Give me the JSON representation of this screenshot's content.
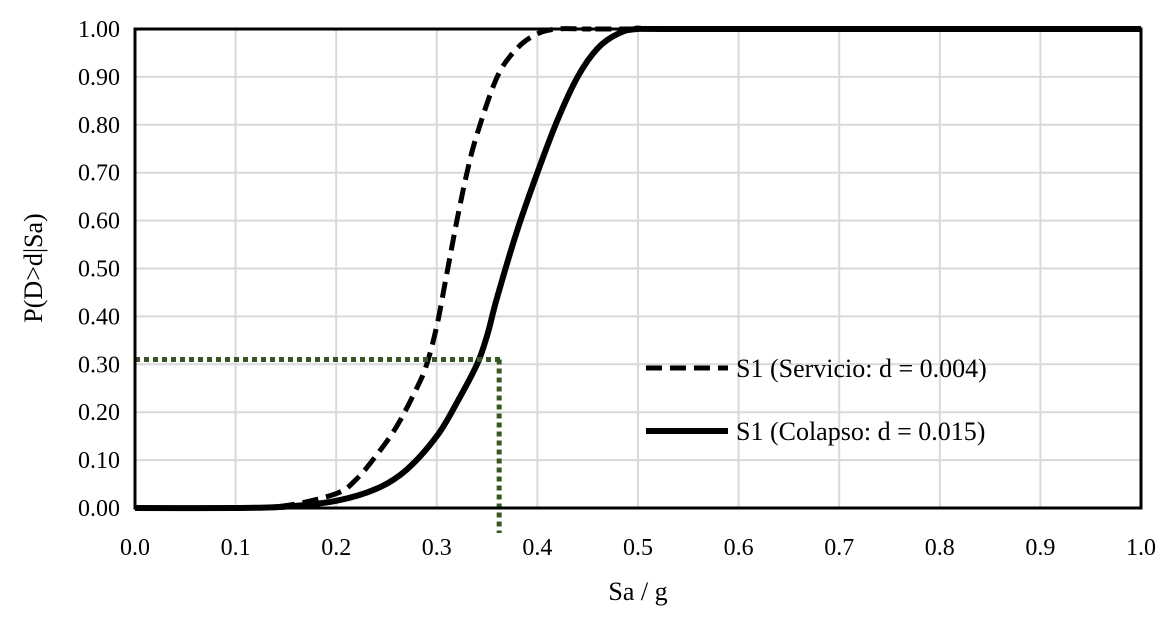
{
  "chart_data": {
    "type": "line",
    "title": "",
    "xlabel": "Sa / g",
    "ylabel": "P(D>d|Sa)",
    "xlim": [
      0.0,
      1.0
    ],
    "ylim": [
      0.0,
      1.0
    ],
    "grid": true,
    "legend_position": "right-center",
    "x_ticks": [
      "0.0",
      "0.1",
      "0.2",
      "0.3",
      "0.4",
      "0.5",
      "0.6",
      "0.7",
      "0.8",
      "0.9",
      "1.0"
    ],
    "y_ticks": [
      "0.00",
      "0.10",
      "0.20",
      "0.30",
      "0.40",
      "0.50",
      "0.60",
      "0.70",
      "0.80",
      "0.90",
      "1.00"
    ],
    "series": [
      {
        "name": "S1 (Servicio: d = 0.004)",
        "style": "dashed",
        "color": "#000000",
        "x": [
          0.0,
          0.1,
          0.15,
          0.2,
          0.22,
          0.24,
          0.26,
          0.28,
          0.29,
          0.3,
          0.31,
          0.32,
          0.33,
          0.34,
          0.36,
          0.38,
          0.4,
          0.42,
          0.45,
          0.5,
          1.0
        ],
        "y": [
          0.0,
          0.0,
          0.005,
          0.03,
          0.06,
          0.11,
          0.17,
          0.25,
          0.3,
          0.38,
          0.49,
          0.6,
          0.7,
          0.78,
          0.9,
          0.96,
          0.99,
          1.0,
          1.0,
          1.0,
          1.0
        ]
      },
      {
        "name": "S1 (Colapso: d = 0.015)",
        "style": "solid",
        "color": "#000000",
        "x": [
          0.0,
          0.1,
          0.15,
          0.2,
          0.24,
          0.27,
          0.3,
          0.32,
          0.34,
          0.35,
          0.36,
          0.38,
          0.4,
          0.42,
          0.44,
          0.46,
          0.48,
          0.5,
          0.55,
          1.0
        ],
        "y": [
          0.0,
          0.0,
          0.003,
          0.015,
          0.04,
          0.08,
          0.15,
          0.22,
          0.3,
          0.36,
          0.44,
          0.58,
          0.7,
          0.81,
          0.9,
          0.96,
          0.99,
          1.0,
          1.0,
          1.0
        ]
      }
    ],
    "annotations": [
      {
        "type": "dotted-guide",
        "color": "#375623",
        "y": 0.31,
        "x_from": 0.0,
        "x_to": 0.365,
        "drop_to_x_axis_at": 0.362
      }
    ]
  }
}
